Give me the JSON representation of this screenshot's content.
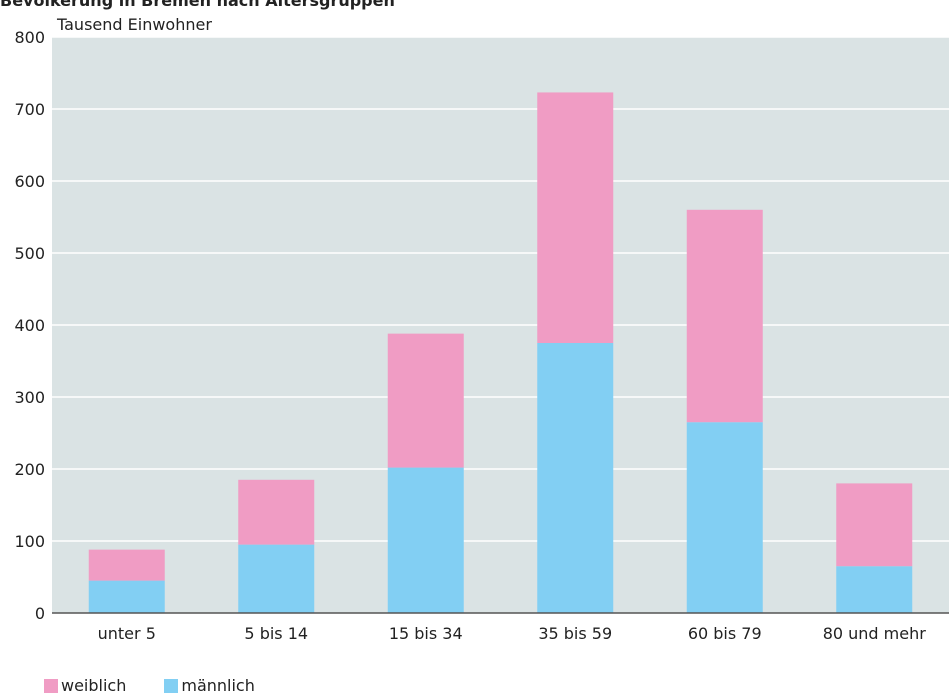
{
  "chart_data": {
    "type": "bar",
    "stacked": true,
    "title": "Bevölkerung in Bremen nach Altersgruppen",
    "ylabel": "Tausend Einwohner",
    "xlabel": "",
    "ylim": [
      0,
      800
    ],
    "yticks": [
      0,
      100,
      200,
      300,
      400,
      500,
      600,
      700,
      800
    ],
    "grid": true,
    "legend_position": "bottom-left",
    "categories": [
      "unter 5",
      "5 bis 14",
      "15 bis 34",
      "35 bis 59",
      "60 bis 79",
      "80 und mehr"
    ],
    "series": [
      {
        "name": "männlich",
        "color": "#82cff3",
        "values": [
          45,
          95,
          202,
          375,
          265,
          65
        ]
      },
      {
        "name": "weiblich",
        "color": "#f09cc4",
        "values": [
          43,
          90,
          186,
          348,
          295,
          115
        ]
      }
    ],
    "legend": [
      {
        "name": "weiblich",
        "color": "#f09cc4"
      },
      {
        "name": "männlich",
        "color": "#82cff3"
      }
    ],
    "plot_background": "#dae3e4",
    "grid_color": "#ffffff"
  }
}
